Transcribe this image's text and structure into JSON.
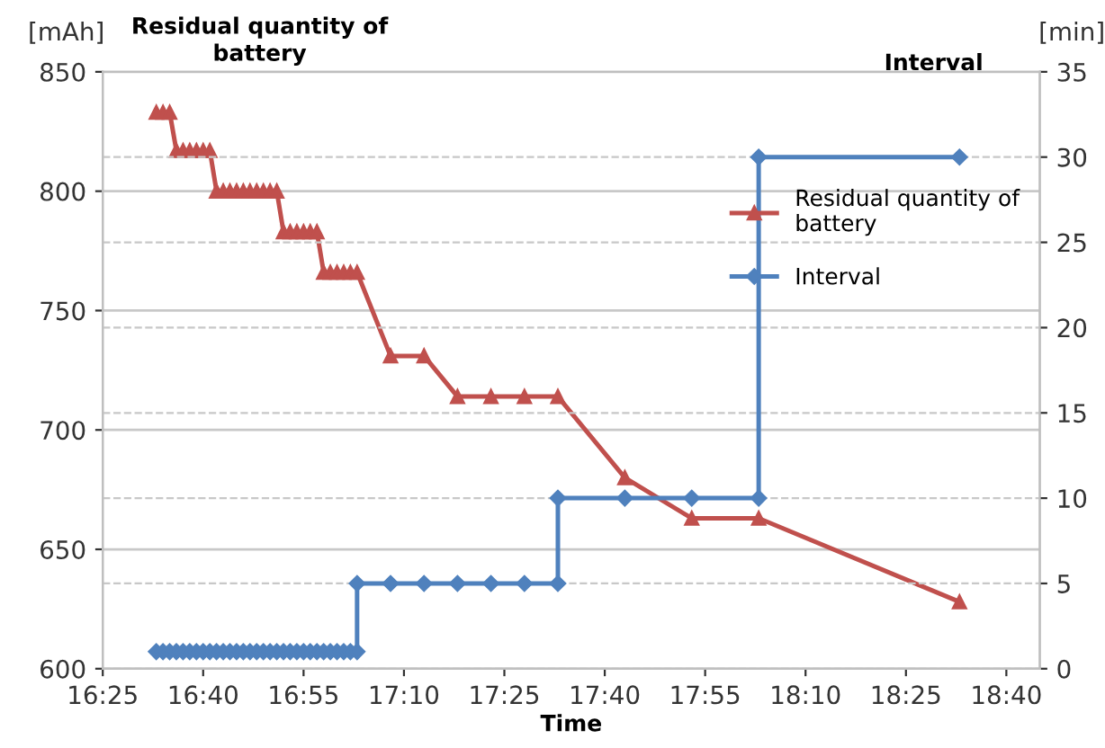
{
  "chart_data": {
    "type": "line",
    "xlabel": "Time",
    "ylabel": "Residual quantity of battery",
    "y2label": "Interval",
    "annotations": [
      "[mAh]",
      "[min]"
    ],
    "xlim": [
      16.4167,
      18.75
    ],
    "xticks": [
      {
        "value": 16.4167,
        "label": "16:25"
      },
      {
        "value": 16.6667,
        "label": "16:40"
      },
      {
        "value": 16.9167,
        "label": "16:55"
      },
      {
        "value": 17.1667,
        "label": "17:10"
      },
      {
        "value": 17.4167,
        "label": "17:25"
      },
      {
        "value": 17.6667,
        "label": "17:40"
      },
      {
        "value": 17.9167,
        "label": "17:55"
      },
      {
        "value": 18.1667,
        "label": "18:10"
      },
      {
        "value": 18.4167,
        "label": "18:25"
      },
      {
        "value": 18.6667,
        "label": "18:40"
      }
    ],
    "ylim": [
      600,
      850
    ],
    "yticks": [
      600,
      650,
      700,
      750,
      800,
      850
    ],
    "y2lim": [
      0,
      35
    ],
    "y2ticks": [
      0,
      5,
      10,
      15,
      20,
      25,
      30,
      35
    ],
    "grid": "y",
    "legend": "right",
    "series": [
      {
        "name": "Residual quantity of battery",
        "color": "#c0504d",
        "marker": "triangle",
        "x": [
          16.55,
          16.5667,
          16.5833,
          16.6,
          16.6167,
          16.6333,
          16.65,
          16.6667,
          16.6833,
          16.7,
          16.7167,
          16.7333,
          16.75,
          16.7667,
          16.7833,
          16.8,
          16.8167,
          16.8333,
          16.85,
          16.8667,
          16.8833,
          16.9,
          16.9167,
          16.9333,
          16.95,
          16.9667,
          16.9833,
          17.0,
          17.0167,
          17.0333,
          17.05,
          17.1333,
          17.2167,
          17.3,
          17.3833,
          17.4667,
          17.55,
          17.7167,
          17.8833,
          18.05,
          18.55
        ],
        "values": [
          833,
          833,
          833,
          817,
          817,
          817,
          817,
          817,
          817,
          800,
          800,
          800,
          800,
          800,
          800,
          800,
          800,
          800,
          800,
          783,
          783,
          783,
          783,
          783,
          783,
          766,
          766,
          766,
          766,
          766,
          766,
          731,
          731,
          714,
          714,
          714,
          714,
          680,
          663,
          663,
          628
        ]
      },
      {
        "name": "Interval",
        "color": "#4f81bd",
        "marker": "diamond",
        "axis": "y2",
        "x": [
          16.55,
          16.5667,
          16.5833,
          16.6,
          16.6167,
          16.6333,
          16.65,
          16.6667,
          16.6833,
          16.7,
          16.7167,
          16.7333,
          16.75,
          16.7667,
          16.7833,
          16.8,
          16.8167,
          16.8333,
          16.85,
          16.8667,
          16.8833,
          16.9,
          16.9167,
          16.9333,
          16.95,
          16.9667,
          16.9833,
          17.0,
          17.0167,
          17.0333,
          17.05,
          17.05,
          17.1333,
          17.2167,
          17.3,
          17.3833,
          17.4667,
          17.55,
          17.55,
          17.7167,
          17.8833,
          18.05,
          18.05,
          18.55
        ],
        "values": [
          1,
          1,
          1,
          1,
          1,
          1,
          1,
          1,
          1,
          1,
          1,
          1,
          1,
          1,
          1,
          1,
          1,
          1,
          1,
          1,
          1,
          1,
          1,
          1,
          1,
          1,
          1,
          1,
          1,
          1,
          1,
          5,
          5,
          5,
          5,
          5,
          5,
          5,
          10,
          10,
          10,
          10,
          30,
          30
        ]
      }
    ]
  }
}
